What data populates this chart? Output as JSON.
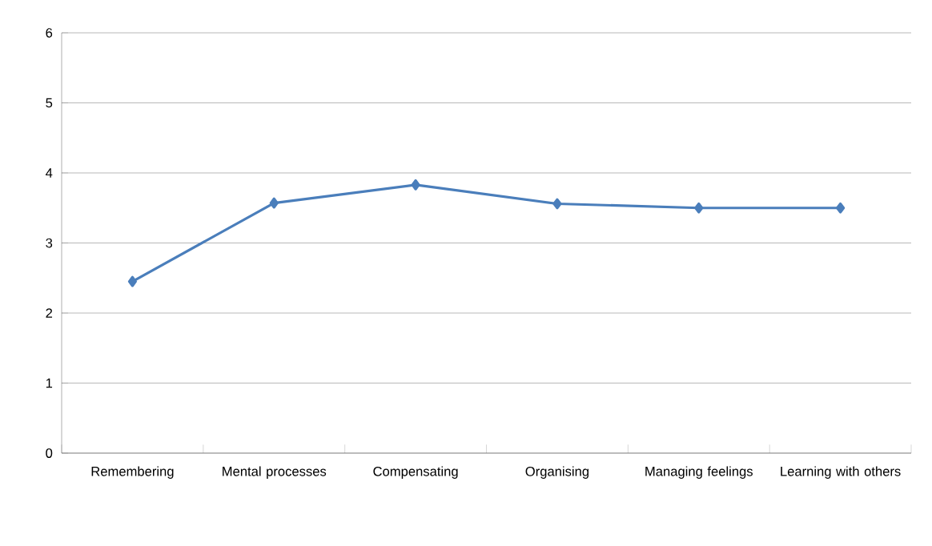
{
  "chart_data": {
    "type": "line",
    "categories": [
      "Remembering",
      "Mental processes",
      "Compensating",
      "Organising",
      "Managing feelings",
      "Learning with others"
    ],
    "series": [
      {
        "color": "#4a7ebb",
        "values": [
          2.45,
          3.57,
          3.83,
          3.56,
          3.5,
          3.5
        ]
      }
    ],
    "ylim": [
      0,
      6
    ],
    "yticks": [
      0,
      1,
      2,
      3,
      4,
      5,
      6
    ],
    "grid": "y",
    "marker": "diamond",
    "line_style": "solid"
  }
}
